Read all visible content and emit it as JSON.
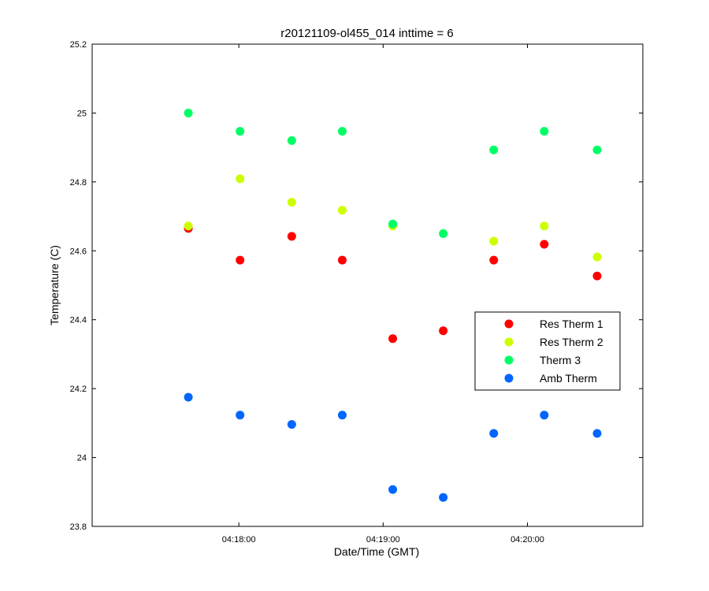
{
  "chart_data": {
    "type": "scatter",
    "title": "r20121109-ol455_014 inttime = 6",
    "xlabel": "Date/Time (GMT)",
    "ylabel": "Temperature (C)",
    "x_ticks": [
      "04:18:00",
      "04:19:00",
      "04:20:00"
    ],
    "x_tick_values": [
      0,
      60,
      120
    ],
    "xlim": [
      -61,
      168
    ],
    "y_ticks": [
      "23.8",
      "24",
      "24.2",
      "24.4",
      "24.6",
      "24.8",
      "25",
      "25.2"
    ],
    "y_tick_values": [
      23.8,
      24.0,
      24.2,
      24.4,
      24.6,
      24.8,
      25.0,
      25.2
    ],
    "ylim": [
      23.8,
      25.2
    ],
    "grid": false,
    "legend_position": "right",
    "x": [
      -21,
      0.5,
      22,
      43,
      64,
      85,
      106,
      127,
      149
    ],
    "series": [
      {
        "name": "Res Therm 1",
        "color": "#ff0000",
        "values": [
          24.665,
          24.573,
          24.642,
          24.573,
          24.345,
          24.368,
          24.573,
          24.619,
          24.527
        ]
      },
      {
        "name": "Res Therm 2",
        "color": "#ccff00",
        "values": [
          24.672,
          24.809,
          24.741,
          24.718,
          24.672,
          null,
          24.628,
          24.672,
          24.582
        ]
      },
      {
        "name": "Therm 3",
        "color": "#00ff66",
        "values": [
          25.0,
          24.947,
          24.92,
          24.947,
          24.678,
          24.65,
          24.893,
          24.947,
          24.893
        ]
      },
      {
        "name": "Amb Therm",
        "color": "#0066ff",
        "values": [
          24.175,
          24.123,
          24.096,
          24.123,
          23.907,
          23.884,
          24.07,
          24.123,
          24.07
        ]
      }
    ]
  }
}
